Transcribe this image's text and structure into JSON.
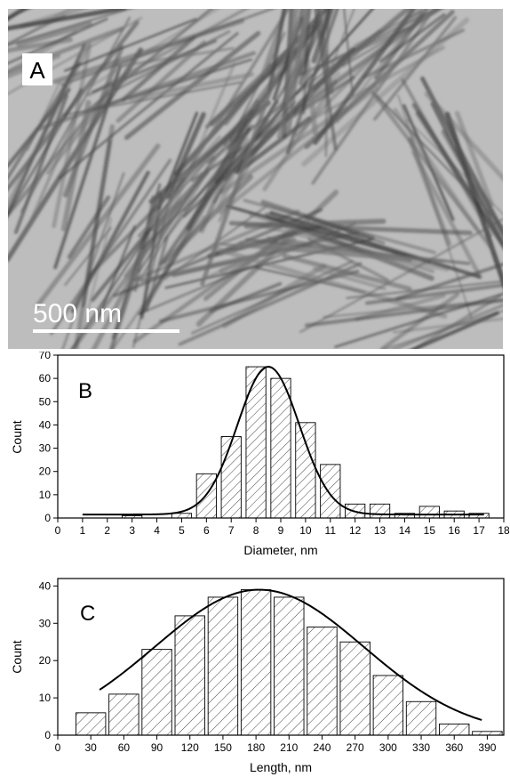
{
  "panel_a": {
    "letter": "A",
    "scale_bar_label": "500 nm"
  },
  "chart_data": [
    {
      "type": "bar",
      "panel": "B",
      "xlabel": "Diameter, nm",
      "ylabel": "Count",
      "xlim": [
        0,
        18
      ],
      "ylim": [
        0,
        70
      ],
      "xticks": [
        0,
        1,
        2,
        3,
        4,
        5,
        6,
        7,
        8,
        9,
        10,
        11,
        12,
        13,
        14,
        15,
        16,
        17,
        18
      ],
      "yticks": [
        0,
        10,
        20,
        30,
        40,
        50,
        60,
        70
      ],
      "bar_width": 0.8,
      "bar_centers": [
        3,
        5,
        6,
        7,
        8,
        9,
        10,
        11,
        12,
        13,
        14,
        15,
        16,
        17
      ],
      "values": [
        1,
        2,
        19,
        35,
        65,
        60,
        41,
        23,
        6,
        6,
        2,
        5,
        3,
        2
      ],
      "fit": {
        "type": "gaussian",
        "baseline": 1.5,
        "amplitude": 63.5,
        "center": 8.5,
        "sigma": 1.25,
        "x_range": [
          1,
          17.2
        ]
      },
      "grid": false,
      "legend": "none"
    },
    {
      "type": "bar",
      "panel": "C",
      "xlabel": "Length, nm",
      "ylabel": "Count",
      "xlim": [
        0,
        405
      ],
      "ylim": [
        0,
        42
      ],
      "xticks": [
        0,
        30,
        60,
        90,
        120,
        150,
        180,
        210,
        240,
        270,
        300,
        330,
        360,
        390
      ],
      "yticks": [
        0,
        10,
        20,
        30,
        40
      ],
      "bar_width": 27,
      "bar_centers": [
        30,
        60,
        90,
        120,
        150,
        180,
        210,
        240,
        270,
        300,
        330,
        360,
        390
      ],
      "values": [
        6,
        11,
        23,
        32,
        37,
        39,
        37,
        29,
        25,
        16,
        9,
        3,
        1
      ],
      "fit": {
        "type": "gaussian",
        "baseline": 0,
        "amplitude": 39,
        "center": 183,
        "sigma": 95,
        "x_range": [
          38,
          385
        ]
      },
      "grid": false,
      "legend": "none"
    }
  ]
}
